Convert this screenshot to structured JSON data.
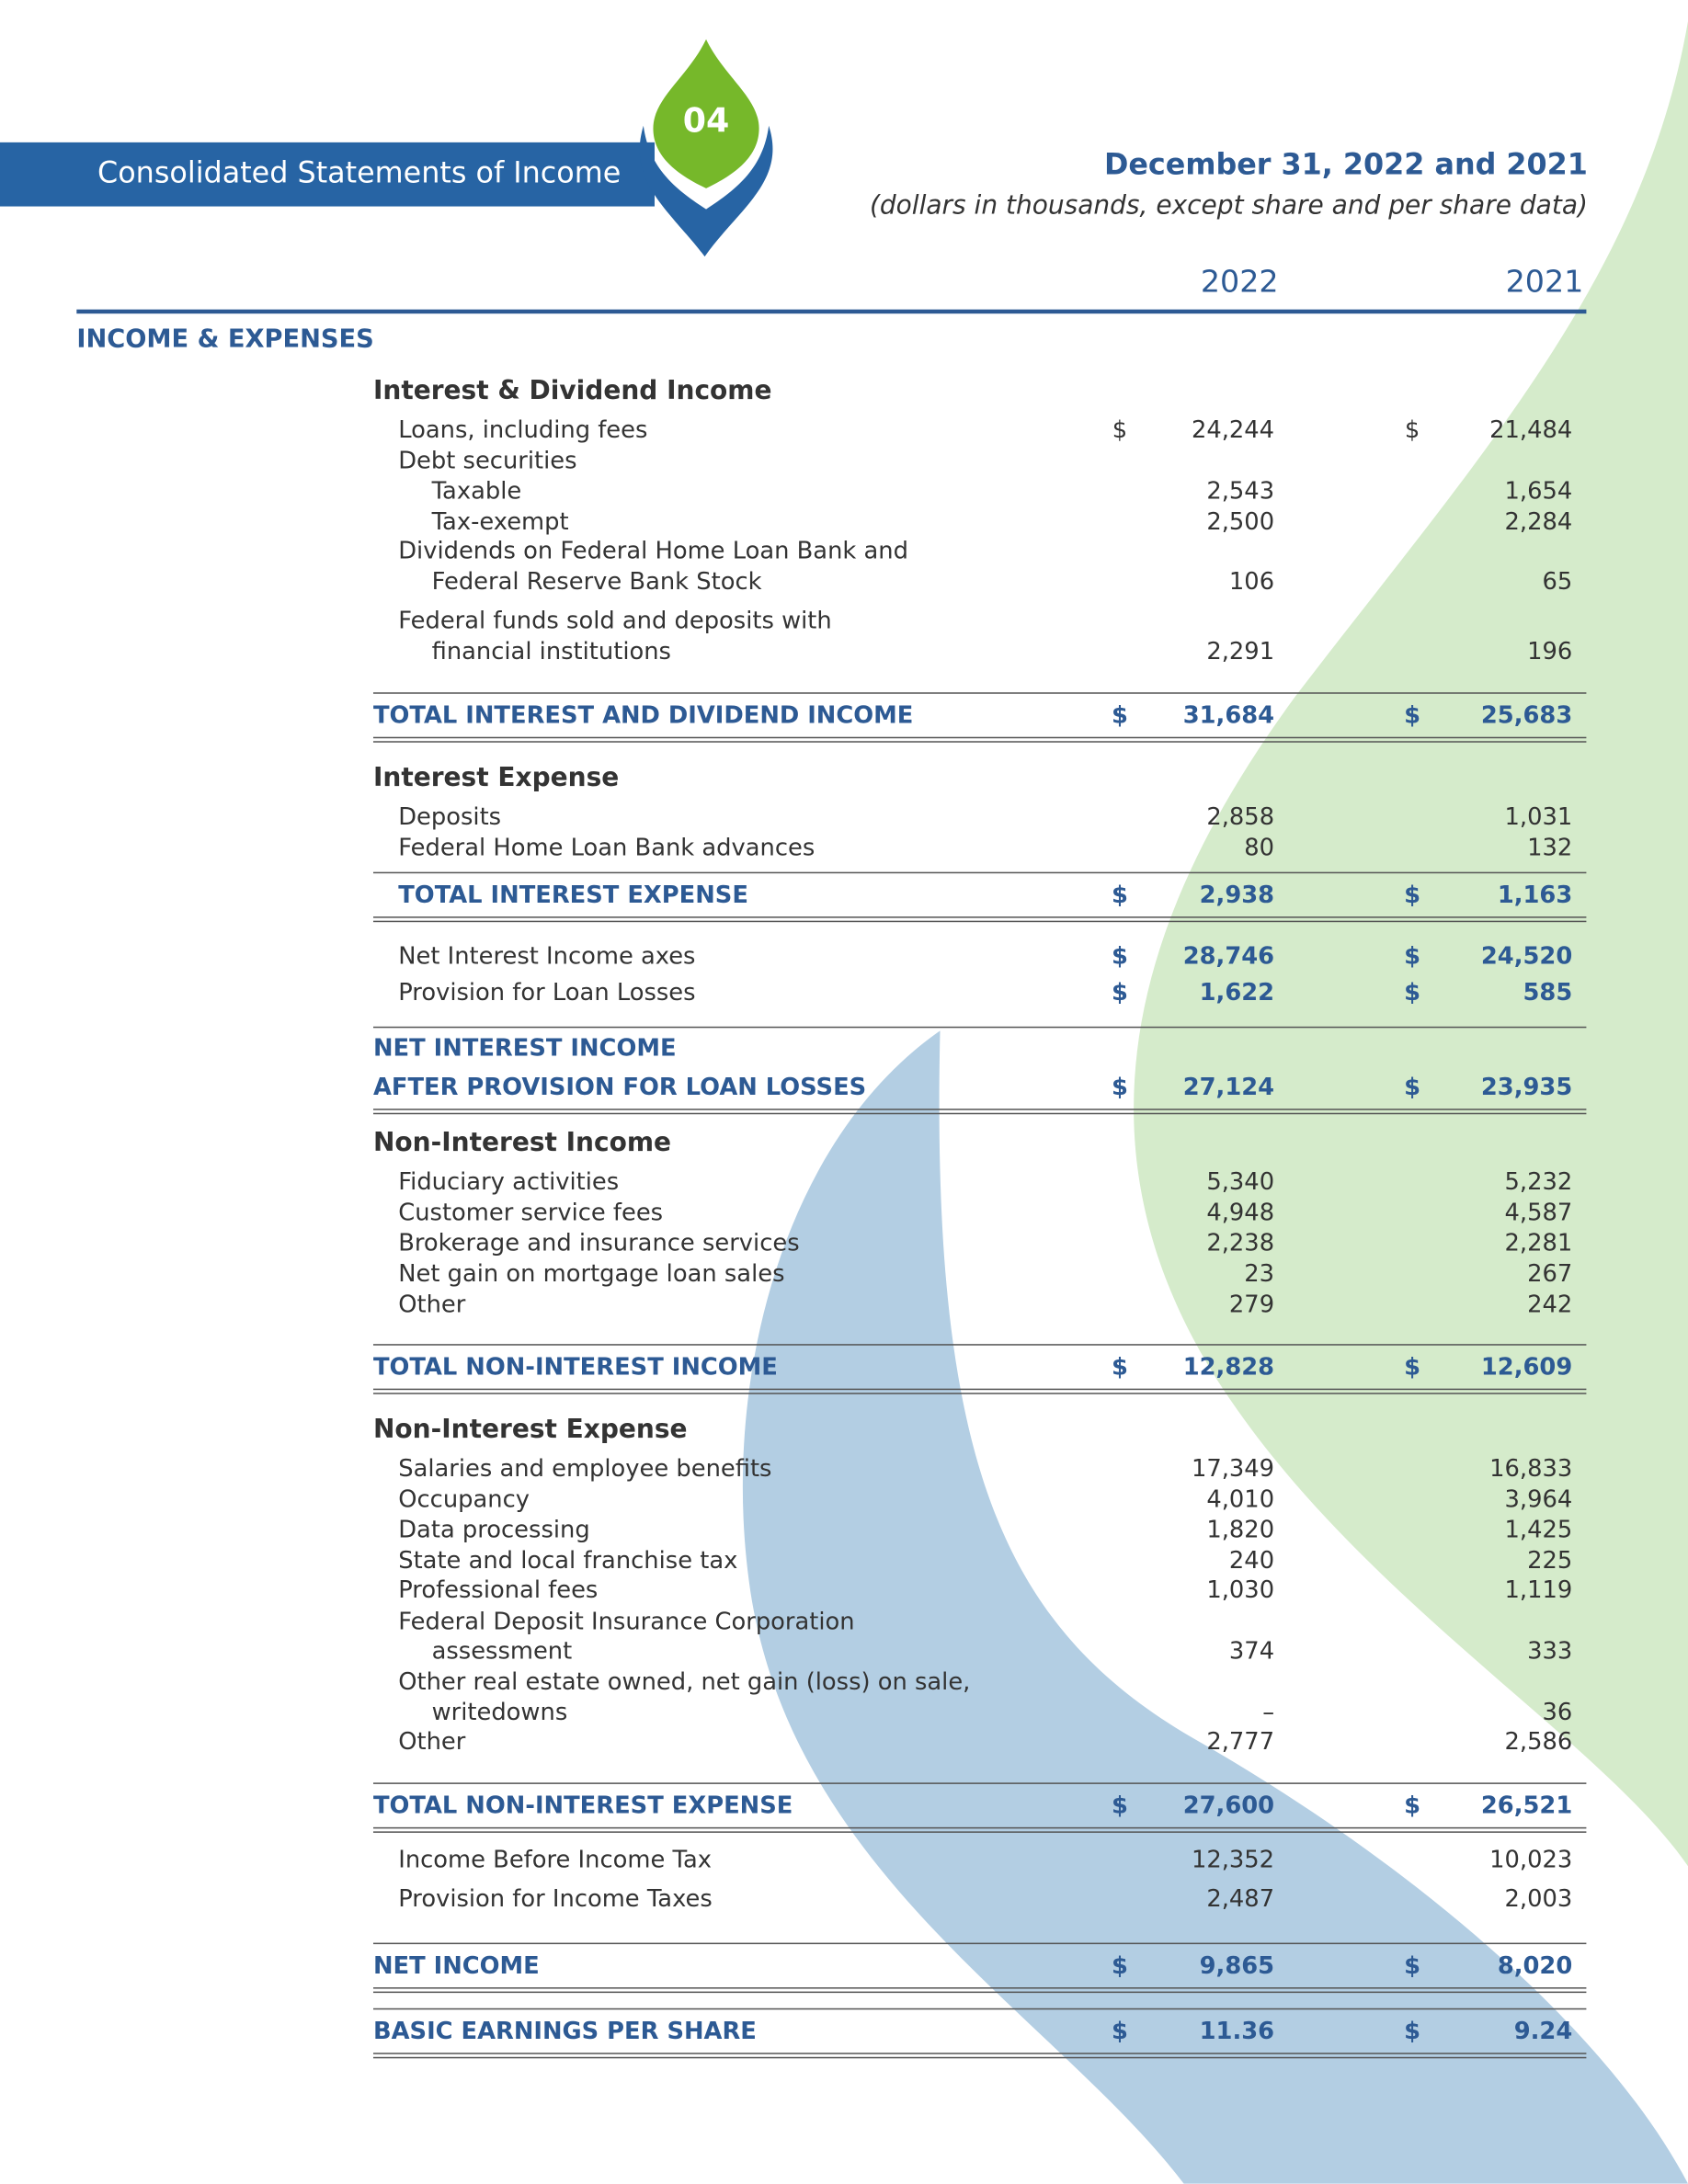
{
  "header": {
    "badge": "04",
    "title": "Consolidated Statements of Income",
    "date": "December 31, 2022 and 2021",
    "subtitle": "(dollars in thousands, except share and per share data)"
  },
  "columns": [
    "2022",
    "2021"
  ],
  "section": "INCOME & EXPENSES",
  "currency": "$",
  "rows": [
    {
      "label": "Interest & Dividend Income"
    },
    {
      "label": "Loans, including fees",
      "values": [
        "24,244",
        "21,484"
      ],
      "currency": true
    },
    {
      "label": "Debt securities"
    },
    {
      "label": "Taxable",
      "values": [
        "2,543",
        "1,654"
      ]
    },
    {
      "label": "Tax-exempt",
      "values": [
        "2,500",
        "2,284"
      ]
    },
    {
      "label": "Dividends on Federal Home Loan Bank and"
    },
    {
      "label": "Federal Reserve Bank Stock",
      "values": [
        "106",
        "65"
      ]
    },
    {
      "label": "Federal funds sold and deposits with"
    },
    {
      "label": "financial institutions",
      "values": [
        "2,291",
        "196"
      ]
    },
    {
      "label": "TOTAL INTEREST AND DIVIDEND INCOME",
      "values": [
        "31,684",
        "25,683"
      ],
      "currency": true
    },
    {
      "label": "Interest Expense"
    },
    {
      "label": "Deposits",
      "values": [
        "2,858",
        "1,031"
      ]
    },
    {
      "label": "Federal Home Loan Bank advances",
      "values": [
        "80",
        "132"
      ]
    },
    {
      "label": "TOTAL INTEREST EXPENSE",
      "values": [
        "2,938",
        "1,163"
      ],
      "currency": true
    },
    {
      "label": "Net Interest Income axes",
      "values": [
        "28,746",
        "24,520"
      ],
      "currency": true
    },
    {
      "label": "Provision for Loan Losses",
      "values": [
        "1,622",
        "585"
      ],
      "currency": true
    },
    {
      "label": "NET INTEREST INCOME"
    },
    {
      "label": "AFTER PROVISION FOR LOAN LOSSES",
      "values": [
        "27,124",
        "23,935"
      ],
      "currency": true
    },
    {
      "label": "Non-Interest Income"
    },
    {
      "label": "Fiduciary activities",
      "values": [
        "5,340",
        "5,232"
      ]
    },
    {
      "label": "Customer service fees",
      "values": [
        "4,948",
        "4,587"
      ]
    },
    {
      "label": "Brokerage and insurance services",
      "values": [
        "2,238",
        "2,281"
      ]
    },
    {
      "label": "Net gain on mortgage loan sales",
      "values": [
        "23",
        "267"
      ]
    },
    {
      "label": "Other",
      "values": [
        "279",
        "242"
      ]
    },
    {
      "label": "TOTAL NON-INTEREST INCOME",
      "values": [
        "12,828",
        "12,609"
      ],
      "currency": true
    },
    {
      "label": "Non-Interest Expense"
    },
    {
      "label": "Salaries and employee benefits",
      "values": [
        "17,349",
        "16,833"
      ]
    },
    {
      "label": "Occupancy",
      "values": [
        "4,010",
        "3,964"
      ]
    },
    {
      "label": "Data processing",
      "values": [
        "1,820",
        "1,425"
      ]
    },
    {
      "label": "State and local franchise tax",
      "values": [
        "240",
        "225"
      ]
    },
    {
      "label": "Professional fees",
      "values": [
        "1,030",
        "1,119"
      ]
    },
    {
      "label": "Federal Deposit Insurance Corporation"
    },
    {
      "label": "assessment",
      "values": [
        "374",
        "333"
      ]
    },
    {
      "label": "Other real estate owned, net gain (loss) on sale,"
    },
    {
      "label": "writedowns",
      "values": [
        "–",
        "36"
      ]
    },
    {
      "label": "Other",
      "values": [
        "2,777",
        "2,586"
      ]
    },
    {
      "label": "TOTAL NON-INTEREST EXPENSE",
      "values": [
        "27,600",
        "26,521"
      ],
      "currency": true
    },
    {
      "label": "Income Before Income Tax",
      "values": [
        "12,352",
        "10,023"
      ]
    },
    {
      "label": "Provision for Income Taxes",
      "values": [
        "2,487",
        "2,003"
      ]
    },
    {
      "label": "NET INCOME",
      "values": [
        "9,865",
        "8,020"
      ],
      "currency": true
    },
    {
      "label": "BASIC EARNINGS PER SHARE",
      "values": [
        "11.36",
        "9.24"
      ],
      "currency": true
    }
  ]
}
